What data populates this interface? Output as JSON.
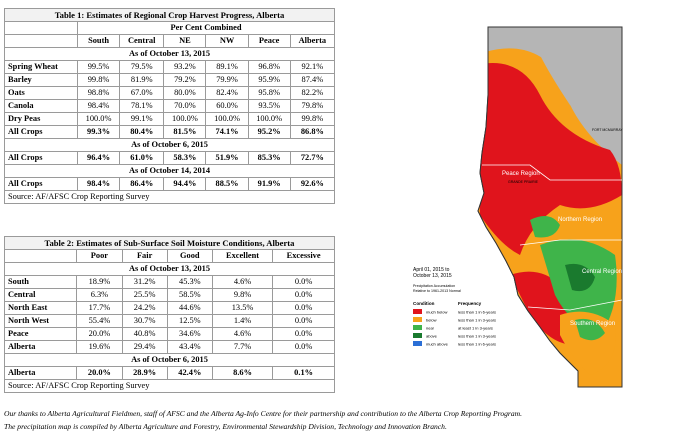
{
  "table1": {
    "title": "Table 1: Estimates of Regional Crop Harvest Progress, Alberta",
    "subheader": "Per Cent Combined",
    "columns": [
      "South",
      "Central",
      "NE",
      "NW",
      "Peace",
      "Alberta"
    ],
    "date1": "As of October 13, 2015",
    "rows": [
      {
        "label": "Spring Wheat",
        "values": [
          "99.5%",
          "79.5%",
          "93.2%",
          "89.1%",
          "96.8%",
          "92.1%"
        ]
      },
      {
        "label": "Barley",
        "values": [
          "99.8%",
          "81.9%",
          "79.2%",
          "79.9%",
          "95.9%",
          "87.4%"
        ]
      },
      {
        "label": "Oats",
        "values": [
          "98.8%",
          "67.0%",
          "80.0%",
          "82.4%",
          "95.8%",
          "82.2%"
        ]
      },
      {
        "label": "Canola",
        "values": [
          "98.4%",
          "78.1%",
          "70.0%",
          "60.0%",
          "93.5%",
          "79.8%"
        ]
      },
      {
        "label": "Dry Peas",
        "values": [
          "100.0%",
          "99.1%",
          "100.0%",
          "100.0%",
          "100.0%",
          "99.8%"
        ]
      }
    ],
    "allcrops1": {
      "label": "All Crops",
      "values": [
        "99.3%",
        "80.4%",
        "81.5%",
        "74.1%",
        "95.2%",
        "86.8%"
      ]
    },
    "date2": "As of October 6, 2015",
    "allcrops2": {
      "label": "All Crops",
      "values": [
        "96.4%",
        "61.0%",
        "58.3%",
        "51.9%",
        "85.3%",
        "72.7%"
      ]
    },
    "date3": "As of October 14, 2014",
    "allcrops3": {
      "label": "All Crops",
      "values": [
        "98.4%",
        "86.4%",
        "94.4%",
        "88.5%",
        "91.9%",
        "92.6%"
      ]
    },
    "source": "Source: AF/AFSC Crop Reporting Survey"
  },
  "table2": {
    "title": "Table 2: Estimates of Sub-Surface Soil Moisture Conditions, Alberta",
    "columns": [
      "Poor",
      "Fair",
      "Good",
      "Excellent",
      "Excessive"
    ],
    "date1": "As of October 13, 2015",
    "rows": [
      {
        "label": "South",
        "values": [
          "18.9%",
          "31.2%",
          "45.3%",
          "4.6%",
          "0.0%"
        ]
      },
      {
        "label": "Central",
        "values": [
          "6.3%",
          "25.5%",
          "58.5%",
          "9.8%",
          "0.0%"
        ]
      },
      {
        "label": "North East",
        "values": [
          "17.7%",
          "24.2%",
          "44.6%",
          "13.5%",
          "0.0%"
        ]
      },
      {
        "label": "North West",
        "values": [
          "55.4%",
          "30.7%",
          "12.5%",
          "1.4%",
          "0.0%"
        ]
      },
      {
        "label": "Peace",
        "values": [
          "20.0%",
          "40.8%",
          "34.6%",
          "4.6%",
          "0.0%"
        ]
      },
      {
        "label": "Alberta",
        "values": [
          "19.6%",
          "29.4%",
          "43.4%",
          "7.7%",
          "0.0%"
        ]
      }
    ],
    "date2": "As of October 6, 2015",
    "alberta2": {
      "label": "Alberta",
      "values": [
        "20.0%",
        "28.9%",
        "42.4%",
        "8.6%",
        "0.1%"
      ]
    },
    "source": "Source: AF/AFSC Crop Reporting Survey"
  },
  "footnotes": [
    "Our thanks to Alberta Agricultural Fieldmen, staff of AFSC and the Alberta Ag-Info Centre for their partnership and contribution to the Alberta Crop Reporting Program.",
    "The precipitation map is compiled by Alberta Agriculture and Forestry, Environmental Stewardship Division, Technology and Innovation Branch."
  ],
  "map": {
    "date_line1": "April 01, 2015 to",
    "date_line2": "October 13, 2015",
    "subtitle_line1": "Precipitation Accumulation",
    "subtitle_line2": "Relative to 1961-2013 Normal",
    "region_labels": {
      "peace": "Peace Region",
      "northern": "Northern Region",
      "central": "Central Region",
      "southern": "Southern Region"
    },
    "places": {
      "fort_mcmurray": "FORT MCMURRAY",
      "grande_prairie": "GRANDE PRAIRIE"
    },
    "legend_condition_header": "Condition",
    "legend_frequency_header": "Frequency",
    "legend": [
      {
        "condition": "much below",
        "frequency": "less than 1 in 6-years",
        "color": "#e0141c"
      },
      {
        "condition": "below",
        "frequency": "less than 1 in 3-years",
        "color": "#f7a21b"
      },
      {
        "condition": "near",
        "frequency": "at least 1 in 3-years",
        "color": "#3fb44a"
      },
      {
        "condition": "above",
        "frequency": "less than 1 in 3-years",
        "color": "#1a7a2e"
      },
      {
        "condition": "much above",
        "frequency": "less than 1 in 6-years",
        "color": "#2b6fd6"
      }
    ],
    "colors": {
      "outline": "#333333",
      "grey_north": "#b5b5b5",
      "much_below": "#e0141c",
      "below": "#f7a21b",
      "near": "#3fb44a",
      "above": "#1a7a2e",
      "much_above": "#2b6fd6"
    }
  }
}
